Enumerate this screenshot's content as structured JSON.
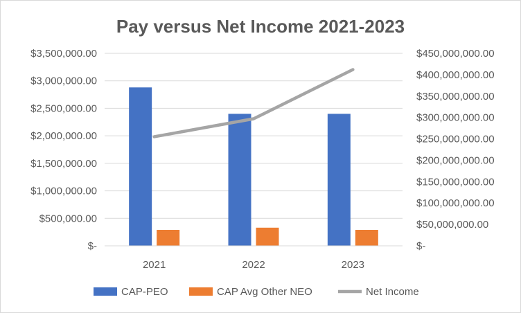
{
  "chart_data": {
    "type": "bar",
    "title": "Pay versus Net Income 2021-2023",
    "categories": [
      "2021",
      "2022",
      "2023"
    ],
    "series": [
      {
        "name": "CAP-PEO",
        "type": "bar",
        "axis": "left",
        "color": "#4472c4",
        "values": [
          2880000,
          2400000,
          2400000
        ]
      },
      {
        "name": "CAP Avg Other NEO",
        "type": "bar",
        "axis": "left",
        "color": "#ed7d31",
        "values": [
          290000,
          330000,
          290000
        ]
      },
      {
        "name": "Net Income",
        "type": "line",
        "axis": "right",
        "color": "#a5a5a5",
        "values": [
          255000000,
          297000000,
          412000000
        ]
      }
    ],
    "y_left": {
      "lim": [
        0,
        3500000
      ],
      "ticks": [
        0,
        500000,
        1000000,
        1500000,
        2000000,
        2500000,
        3000000,
        3500000
      ],
      "tick_labels": [
        "$-",
        "$500,000.00",
        "$1,000,000.00",
        "$1,500,000.00",
        "$2,000,000.00",
        "$2,500,000.00",
        "$3,000,000.00",
        "$3,500,000.00"
      ]
    },
    "y_right": {
      "lim": [
        0,
        450000000
      ],
      "ticks": [
        0,
        50000000,
        100000000,
        150000000,
        200000000,
        250000000,
        300000000,
        350000000,
        400000000,
        450000000
      ],
      "tick_labels": [
        "$-",
        "$50,000,000.00",
        "$100,000,000.00",
        "$150,000,000.00",
        "$200,000,000.00",
        "$250,000,000.00",
        "$300,000,000.00",
        "$350,000,000.00",
        "$400,000,000.00",
        "$450,000,000.00"
      ]
    },
    "grid": true,
    "legend_position": "bottom",
    "colors": {
      "gridline": "#d9d9d9",
      "text": "#595959"
    }
  }
}
